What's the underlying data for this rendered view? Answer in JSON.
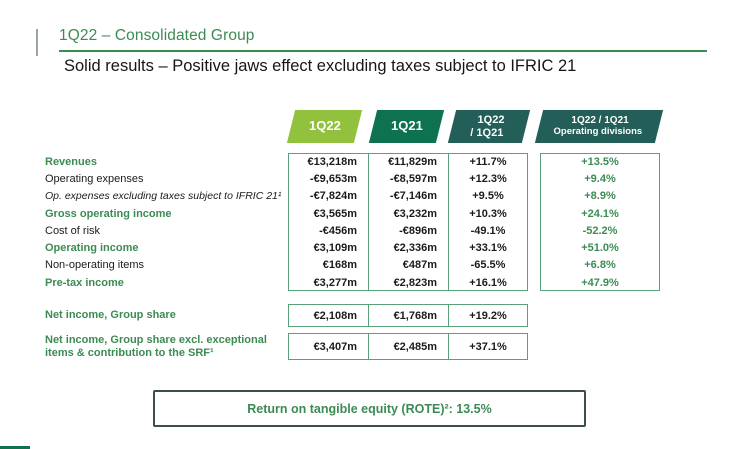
{
  "title": "1Q22 – Consolidated Group",
  "subtitle": "Solid results – Positive jaws effect excluding taxes subject to IFRIC 21",
  "colors": {
    "accent_green": "#3c8b53",
    "banner_light_green": "#92c13e",
    "banner_dark_green": "#0e7150",
    "banner_teal": "#235e59",
    "table_border": "#57a377"
  },
  "table": {
    "headers": [
      {
        "label": "1Q22",
        "style": "light"
      },
      {
        "label": "1Q21",
        "style": "dark"
      },
      {
        "label": "1Q22 / 1Q21",
        "style": "teal",
        "lines": [
          "1Q22",
          "/ 1Q21"
        ]
      },
      {
        "label": "1Q22 / 1Q21 Operating divisions",
        "style": "teal",
        "lines": [
          "1Q22 / 1Q21",
          "Operating divisions"
        ]
      }
    ],
    "rows": [
      {
        "label": "Revenues",
        "style": "green-bold",
        "values": [
          "€13,218m",
          "€11,829m",
          "+11.7%",
          "+13.5%"
        ]
      },
      {
        "label": "Operating expenses",
        "style": "normal",
        "values": [
          "-€9,653m",
          "-€8,597m",
          "+12.3%",
          "+9.4%"
        ]
      },
      {
        "label": "Op. expenses excluding taxes subject to IFRIC 21¹",
        "style": "italic",
        "values": [
          "-€7,824m",
          "-€7,146m",
          "+9.5%",
          "+8.9%"
        ]
      },
      {
        "label": "Gross operating income",
        "style": "green-bold",
        "values": [
          "€3,565m",
          "€3,232m",
          "+10.3%",
          "+24.1%"
        ]
      },
      {
        "label": "Cost of risk",
        "style": "normal",
        "values": [
          "-€456m",
          "-€896m",
          "-49.1%",
          "-52.2%"
        ]
      },
      {
        "label": "Operating income",
        "style": "green-bold",
        "values": [
          "€3,109m",
          "€2,336m",
          "+33.1%",
          "+51.0%"
        ]
      },
      {
        "label": "Non-operating items",
        "style": "normal",
        "values": [
          "€168m",
          "€487m",
          "-65.5%",
          "+6.8%"
        ]
      },
      {
        "label": "Pre-tax income",
        "style": "green-bold",
        "values": [
          "€3,277m",
          "€2,823m",
          "+16.1%",
          "+47.9%"
        ]
      }
    ],
    "net_rows": [
      {
        "label": "Net income, Group share",
        "values": [
          "€2,108m",
          "€1,768m",
          "+19.2%"
        ]
      },
      {
        "label": "Net income, Group share excl. exceptional items & contribution to the SRF¹",
        "values": [
          "€3,407m",
          "€2,485m",
          "+37.1%"
        ]
      }
    ]
  },
  "footer_box": {
    "text": "Return on tangible equity (ROTE)²: 13.5%"
  }
}
